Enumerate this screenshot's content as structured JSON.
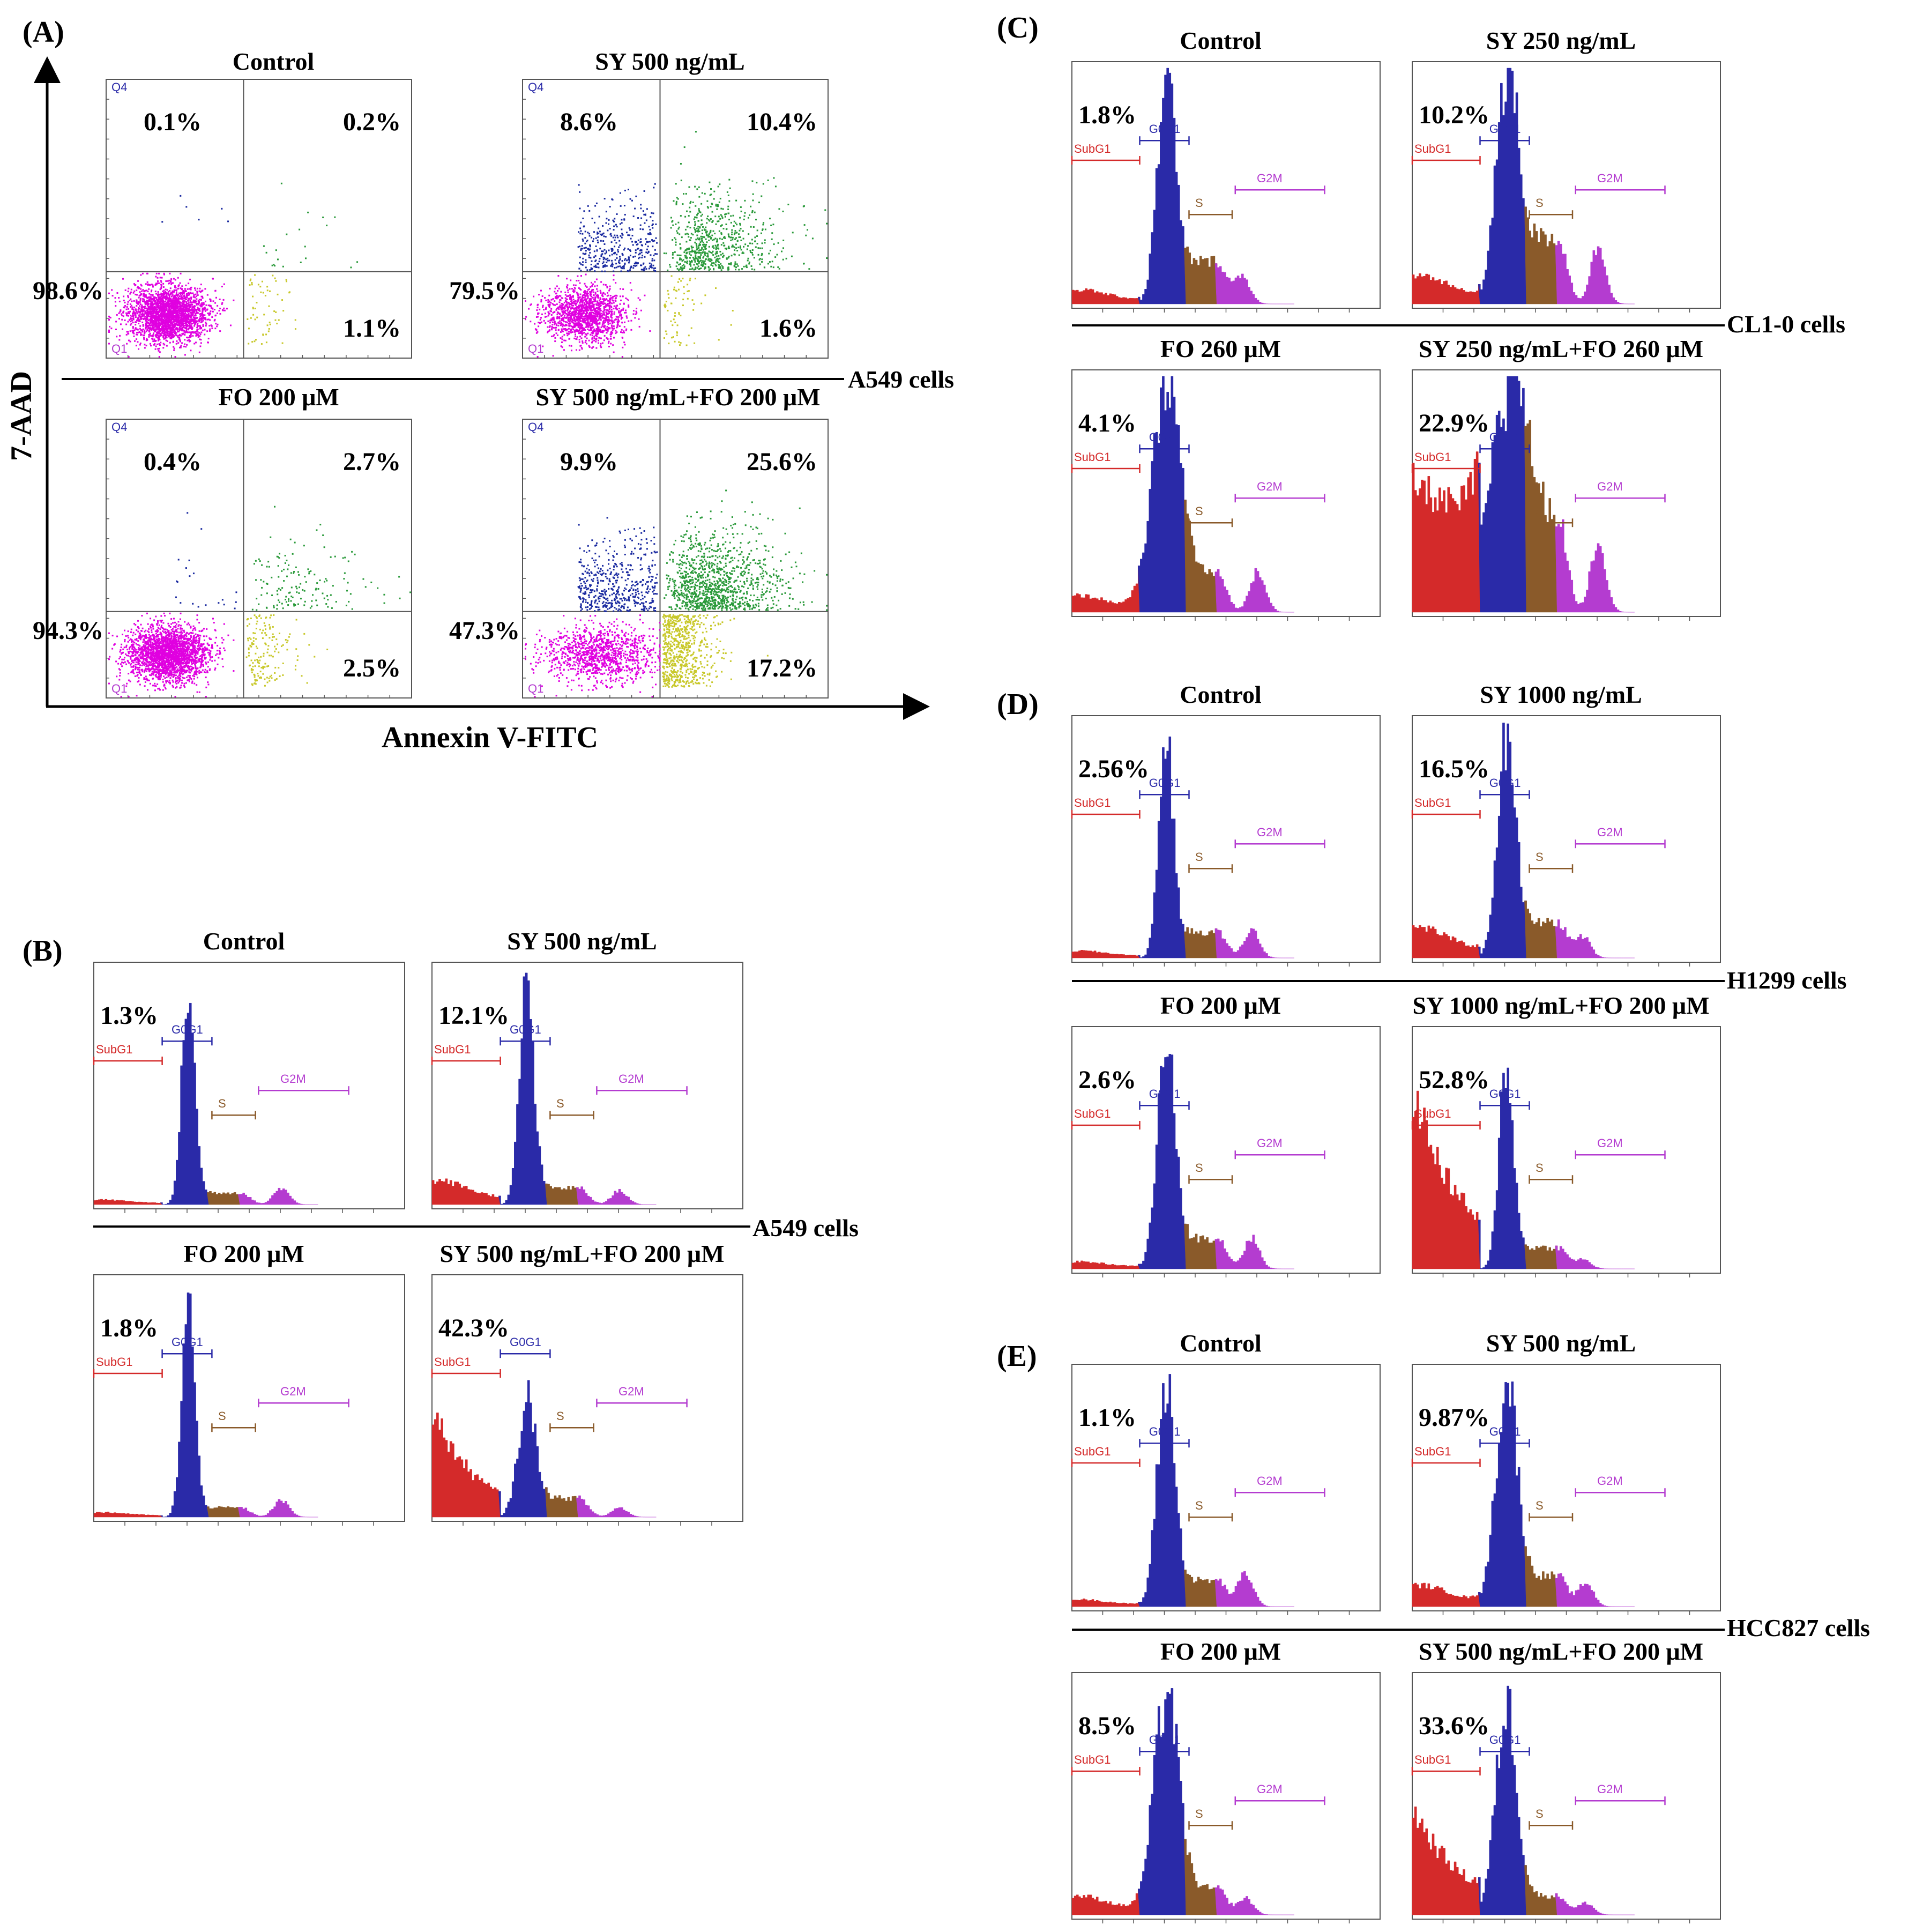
{
  "colors": {
    "subg1": "#d42a2a",
    "g0g1": "#2a2aa8",
    "s": "#8a5a2a",
    "g2m": "#b43cd0",
    "q1": "#e000e0",
    "q4": "#1a2aa0",
    "q2": "#2a9a3a",
    "q3": "#c8c82a"
  },
  "panels": {
    "A": {
      "label": "(A)",
      "cells": "A549 cells",
      "ylabel": "7-AAD",
      "xlabel": "Annexin V-FITC"
    },
    "B": {
      "label": "(B)",
      "cells": "A549 cells"
    },
    "C": {
      "label": "(C)",
      "cells": "CL1-0 cells"
    },
    "D": {
      "label": "(D)",
      "cells": "H1299 cells"
    },
    "E": {
      "label": "(E)",
      "cells": "HCC827 cells"
    }
  },
  "quadrant_tags": {
    "q4": "Q4",
    "q1": "Q1"
  },
  "gate_labels": {
    "subg1": "SubG1",
    "g0g1": "G0G1",
    "s": "S",
    "g2m": "G2M"
  },
  "chart_data": [
    {
      "type": "scatter",
      "panel": "A",
      "cells": "A549 cells",
      "xlabel": "Annexin V-FITC",
      "ylabel": "7-AAD",
      "subplots": [
        {
          "title": "Control",
          "q4": "0.1%",
          "q2": "0.2%",
          "q1": "98.6%",
          "q3": "1.1%"
        },
        {
          "title": "SY 500 ng/mL",
          "q4": "8.6%",
          "q2": "10.4%",
          "q1": "79.5%",
          "q3": "1.6%"
        },
        {
          "title": "FO 200 μM",
          "q4": "0.4%",
          "q2": "2.7%",
          "q1": "94.3%",
          "q3": "2.5%"
        },
        {
          "title": "SY 500 ng/mL+FO 200 μM",
          "q4": "9.9%",
          "q2": "25.6%",
          "q1": "47.3%",
          "q3": "17.2%"
        }
      ]
    },
    {
      "type": "area",
      "panel": "B",
      "cells": "A549 cells",
      "measure": "SubG1 fraction",
      "subplots": [
        {
          "title": "Control",
          "subg1": "1.3%",
          "subg1_value": 1.3
        },
        {
          "title": "SY 500 ng/mL",
          "subg1": "12.1%",
          "subg1_value": 12.1
        },
        {
          "title": "FO 200 μM",
          "subg1": "1.8%",
          "subg1_value": 1.8
        },
        {
          "title": "SY 500 ng/mL+FO 200 μM",
          "subg1": "42.3%",
          "subg1_value": 42.3
        }
      ]
    },
    {
      "type": "area",
      "panel": "C",
      "cells": "CL1-0 cells",
      "measure": "SubG1 fraction",
      "subplots": [
        {
          "title": "Control",
          "subg1": "1.8%",
          "subg1_value": 1.8
        },
        {
          "title": "SY 250 ng/mL",
          "subg1": "10.2%",
          "subg1_value": 10.2
        },
        {
          "title": "FO 260 μM",
          "subg1": "4.1%",
          "subg1_value": 4.1
        },
        {
          "title": "SY 250 ng/mL+FO 260 μM",
          "subg1": "22.9%",
          "subg1_value": 22.9
        }
      ]
    },
    {
      "type": "area",
      "panel": "D",
      "cells": "H1299 cells",
      "measure": "SubG1 fraction",
      "subplots": [
        {
          "title": "Control",
          "subg1": "2.56%",
          "subg1_value": 2.56
        },
        {
          "title": "SY 1000 ng/mL",
          "subg1": "16.5%",
          "subg1_value": 16.5
        },
        {
          "title": "FO 200 μM",
          "subg1": "2.6%",
          "subg1_value": 2.6
        },
        {
          "title": "SY 1000 ng/mL+FO 200 μM",
          "subg1": "52.8%",
          "subg1_value": 52.8
        }
      ]
    },
    {
      "type": "area",
      "panel": "E",
      "cells": "HCC827 cells",
      "measure": "SubG1 fraction",
      "subplots": [
        {
          "title": "Control",
          "subg1": "1.1%",
          "subg1_value": 1.1
        },
        {
          "title": "SY 500 ng/mL",
          "subg1": "9.87%",
          "subg1_value": 9.87
        },
        {
          "title": "FO 200 μM",
          "subg1": "8.5%",
          "subg1_value": 8.5
        },
        {
          "title": "SY 500 ng/mL+FO 200 μM",
          "subg1": "33.6%",
          "subg1_value": 33.6
        }
      ]
    }
  ]
}
